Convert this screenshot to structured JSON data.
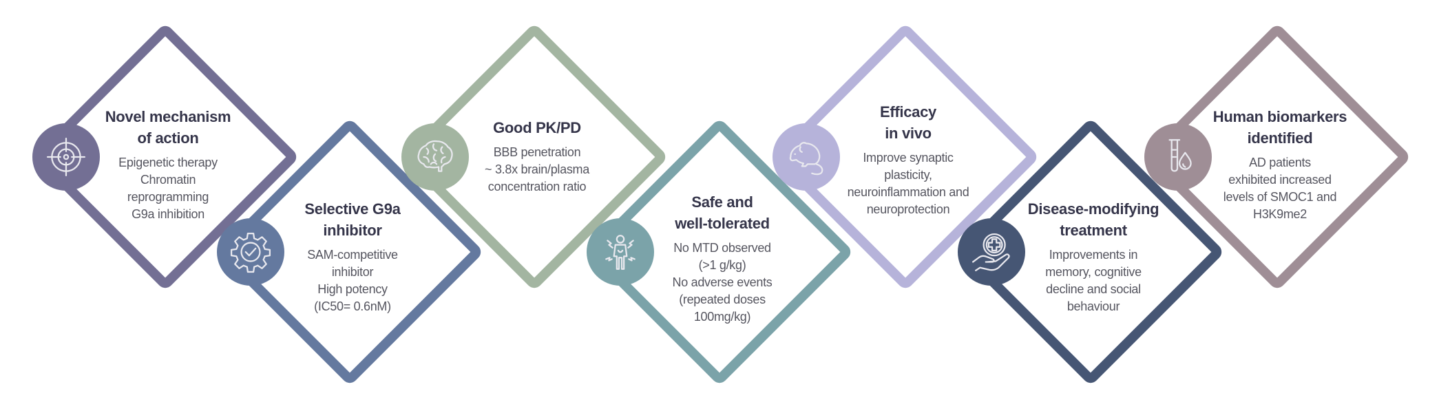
{
  "items": [
    {
      "title": [
        "Novel mechanism",
        "of action"
      ],
      "body": [
        "Epigenetic therapy",
        "Chromatin",
        "reprogramming",
        "G9a inhibition"
      ],
      "icon": "target-icon",
      "color": "#736f94"
    },
    {
      "title": [
        "Selective G9a",
        "inhibitor"
      ],
      "body": [
        "SAM-competitive",
        "inhibitor",
        "High potency",
        "(IC50= 0.6nM)"
      ],
      "icon": "gear-check-icon",
      "color": "#64799f"
    },
    {
      "title": [
        "Good PK/PD"
      ],
      "body": [
        "BBB penetration",
        "~ 3.8x brain/plasma",
        "concentration ratio"
      ],
      "icon": "brain-icon",
      "color": "#a3b5a1"
    },
    {
      "title": [
        "Safe and",
        "well-tolerated"
      ],
      "body": [
        "No MTD observed",
        "(>1 g/kg)",
        "No adverse events",
        "(repeated doses",
        "100mg/kg)"
      ],
      "icon": "person-shock-icon",
      "color": "#7ba3a9"
    },
    {
      "title": [
        "Efficacy",
        "in vivo"
      ],
      "body": [
        "Improve synaptic",
        "plasticity,",
        "neuroinflammation and",
        "neuroprotection"
      ],
      "icon": "mouse-icon",
      "color": "#b6b3da"
    },
    {
      "title": [
        "Disease-modifying",
        "treatment"
      ],
      "body": [
        "Improvements in",
        "memory, cognitive",
        "decline and social",
        "behaviour"
      ],
      "icon": "hand-medical-icon",
      "color": "#465674"
    },
    {
      "title": [
        "Human biomarkers",
        "identified"
      ],
      "body": [
        "AD patients",
        "exhibited increased",
        "levels of SMOC1 and",
        "H3K9me2"
      ],
      "icon": "test-tube-drop-icon",
      "color": "#9f8e96"
    }
  ]
}
